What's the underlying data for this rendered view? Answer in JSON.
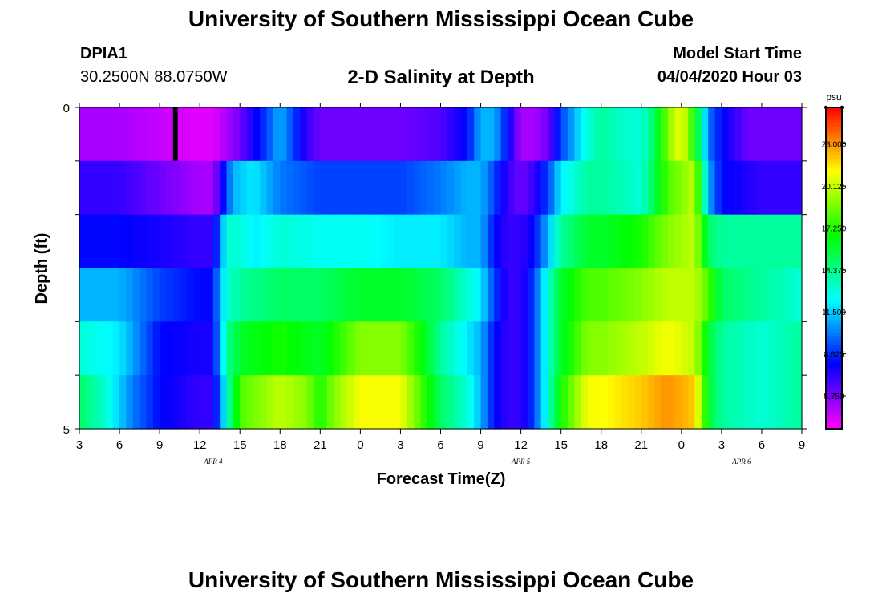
{
  "header": {
    "title": "University of Southern Mississippi Ocean Cube",
    "station_id": "DPIA1",
    "station_location": "30.2500N 88.0750W",
    "plot_title": "2-D Salinity at Depth",
    "model_start_label": "Model Start Time",
    "model_start_value": "04/04/2020 Hour 03"
  },
  "footer": {
    "title": "University of Southern Mississippi Ocean Cube"
  },
  "chart_data": {
    "type": "heatmap",
    "title": "2-D Salinity at Depth",
    "xlabel": "Forecast Time(Z)",
    "ylabel": "Depth (ft)",
    "x_tick_labels": [
      "3",
      "6",
      "9",
      "12",
      "15",
      "18",
      "21",
      "0",
      "3",
      "6",
      "9",
      "12",
      "15",
      "18",
      "21",
      "0",
      "3",
      "6",
      "9"
    ],
    "x_hours": [
      0,
      3,
      6,
      9,
      12,
      15,
      18,
      21,
      24,
      27,
      30,
      33,
      36,
      39,
      42,
      45,
      48,
      51,
      54
    ],
    "date_labels": [
      {
        "text": "APR 4",
        "hour": 10
      },
      {
        "text": "APR 5",
        "hour": 33
      },
      {
        "text": "APR 6",
        "hour": 49.5
      }
    ],
    "y_tick_labels": [
      "0",
      "5"
    ],
    "ylim": [
      0,
      5
    ],
    "colorbar": {
      "unit": "psu",
      "range": [
        3.5,
        25.5
      ],
      "tick_values": [
        23.0,
        20.125,
        17.25,
        14.375,
        11.5,
        8.625,
        5.75
      ],
      "tick_labels": [
        "23.000",
        "20.125",
        "17.250",
        "14.375",
        "11.500",
        "8.625",
        "5.750"
      ]
    },
    "series": [
      {
        "name": "0 ft",
        "keyframes": [
          [
            0,
            5
          ],
          [
            3,
            5
          ],
          [
            6,
            4.5
          ],
          [
            9,
            4
          ],
          [
            10,
            4
          ],
          [
            11,
            5
          ],
          [
            12,
            6
          ],
          [
            13,
            7.5
          ],
          [
            14,
            9
          ],
          [
            15,
            11
          ],
          [
            16,
            9
          ],
          [
            17,
            7
          ],
          [
            18,
            6
          ],
          [
            21,
            6
          ],
          [
            24,
            6
          ],
          [
            27,
            6.5
          ],
          [
            29,
            8
          ],
          [
            30,
            11
          ],
          [
            31,
            11
          ],
          [
            32,
            8
          ],
          [
            33,
            5
          ],
          [
            34,
            5
          ],
          [
            35,
            6
          ],
          [
            36,
            9
          ],
          [
            37,
            11
          ],
          [
            38,
            13
          ],
          [
            39,
            14
          ],
          [
            41,
            13
          ],
          [
            42,
            13
          ],
          [
            43,
            15
          ],
          [
            44,
            19
          ],
          [
            45,
            21
          ],
          [
            46,
            17
          ],
          [
            47,
            10
          ],
          [
            48,
            8
          ],
          [
            50,
            6
          ],
          [
            54,
            6
          ]
        ],
        "blocks": [
          [
            7,
            7.35,
            "#000000"
          ]
        ]
      },
      {
        "name": "1 ft",
        "keyframes": [
          [
            0,
            7
          ],
          [
            3,
            7
          ],
          [
            6,
            6
          ],
          [
            9,
            5
          ],
          [
            10,
            5
          ],
          [
            10.5,
            7
          ],
          [
            11,
            9
          ],
          [
            11.5,
            11
          ],
          [
            13,
            12
          ],
          [
            15,
            10
          ],
          [
            18,
            9
          ],
          [
            21,
            9
          ],
          [
            24,
            9
          ],
          [
            27,
            10
          ],
          [
            29,
            11
          ],
          [
            30,
            11
          ],
          [
            31,
            9
          ],
          [
            32,
            7
          ],
          [
            33,
            6
          ],
          [
            34,
            7
          ],
          [
            35,
            9
          ],
          [
            36,
            12
          ],
          [
            38,
            14
          ],
          [
            39,
            14
          ],
          [
            42,
            13
          ],
          [
            44,
            18
          ],
          [
            46,
            20
          ],
          [
            47,
            11
          ],
          [
            48,
            8
          ],
          [
            51,
            7
          ],
          [
            54,
            7
          ]
        ],
        "blocks": []
      },
      {
        "name": "2 ft",
        "keyframes": [
          [
            0,
            8
          ],
          [
            3,
            8
          ],
          [
            6,
            7.5
          ],
          [
            9,
            7
          ],
          [
            10,
            7
          ],
          [
            10.5,
            10
          ],
          [
            11,
            13
          ],
          [
            12,
            13
          ],
          [
            13,
            12
          ],
          [
            15,
            13
          ],
          [
            18,
            12.5
          ],
          [
            21,
            12.5
          ],
          [
            24,
            12
          ],
          [
            27,
            12
          ],
          [
            29,
            11
          ],
          [
            30,
            11
          ],
          [
            31,
            8
          ],
          [
            32,
            7
          ],
          [
            33,
            7
          ],
          [
            34,
            8
          ],
          [
            35,
            11
          ],
          [
            36,
            14
          ],
          [
            38,
            16
          ],
          [
            39,
            16
          ],
          [
            42,
            17
          ],
          [
            44,
            19
          ],
          [
            46,
            20
          ],
          [
            47,
            15
          ],
          [
            48,
            14
          ],
          [
            51,
            14
          ],
          [
            54,
            14
          ]
        ],
        "blocks": []
      },
      {
        "name": "3 ft",
        "keyframes": [
          [
            0,
            11
          ],
          [
            3,
            11
          ],
          [
            6,
            9
          ],
          [
            9,
            8
          ],
          [
            10,
            8
          ],
          [
            10.5,
            11
          ],
          [
            11,
            13
          ],
          [
            12,
            14
          ],
          [
            15,
            15
          ],
          [
            18,
            15
          ],
          [
            21,
            16
          ],
          [
            24,
            16
          ],
          [
            27,
            15
          ],
          [
            29,
            13
          ],
          [
            30,
            12
          ],
          [
            31,
            9
          ],
          [
            32,
            7
          ],
          [
            33,
            7
          ],
          [
            34,
            9
          ],
          [
            35,
            13
          ],
          [
            36,
            16
          ],
          [
            38,
            18
          ],
          [
            39,
            18
          ],
          [
            42,
            19
          ],
          [
            44,
            20
          ],
          [
            46,
            20
          ],
          [
            47,
            18
          ],
          [
            48,
            15
          ],
          [
            51,
            14
          ],
          [
            54,
            13
          ]
        ],
        "blocks": []
      },
      {
        "name": "4 ft",
        "keyframes": [
          [
            0,
            13
          ],
          [
            3,
            12
          ],
          [
            6,
            8
          ],
          [
            9,
            7.5
          ],
          [
            10,
            7.5
          ],
          [
            10.5,
            11
          ],
          [
            11,
            14
          ],
          [
            12,
            16
          ],
          [
            15,
            17
          ],
          [
            18,
            16
          ],
          [
            20,
            18
          ],
          [
            21,
            19
          ],
          [
            24,
            19
          ],
          [
            26,
            16
          ],
          [
            27,
            14
          ],
          [
            29,
            12
          ],
          [
            30,
            11
          ],
          [
            31,
            8
          ],
          [
            32,
            7
          ],
          [
            33,
            7
          ],
          [
            34,
            9
          ],
          [
            35,
            13
          ],
          [
            36,
            16
          ],
          [
            38,
            19
          ],
          [
            39,
            19
          ],
          [
            42,
            20
          ],
          [
            44,
            21
          ],
          [
            46,
            20
          ],
          [
            47,
            16
          ],
          [
            48,
            14
          ],
          [
            51,
            13
          ],
          [
            54,
            14
          ]
        ],
        "blocks": []
      },
      {
        "name": "5 ft",
        "keyframes": [
          [
            0,
            15
          ],
          [
            2,
            13
          ],
          [
            4,
            10
          ],
          [
            6,
            8
          ],
          [
            9,
            7
          ],
          [
            10,
            7
          ],
          [
            10.5,
            10
          ],
          [
            11,
            13
          ],
          [
            12,
            18
          ],
          [
            15,
            20
          ],
          [
            17,
            19
          ],
          [
            18,
            17
          ],
          [
            19,
            19
          ],
          [
            21,
            21
          ],
          [
            24,
            21
          ],
          [
            26,
            17
          ],
          [
            27,
            15
          ],
          [
            29,
            13
          ],
          [
            30,
            11
          ],
          [
            31,
            8
          ],
          [
            32,
            7
          ],
          [
            33,
            7
          ],
          [
            34,
            9
          ],
          [
            35,
            13
          ],
          [
            36,
            17
          ],
          [
            38,
            21
          ],
          [
            39,
            21
          ],
          [
            42,
            22
          ],
          [
            44,
            23
          ],
          [
            46,
            22
          ],
          [
            47,
            16
          ],
          [
            48,
            14
          ],
          [
            51,
            13
          ],
          [
            54,
            14
          ]
        ],
        "blocks": []
      }
    ]
  }
}
